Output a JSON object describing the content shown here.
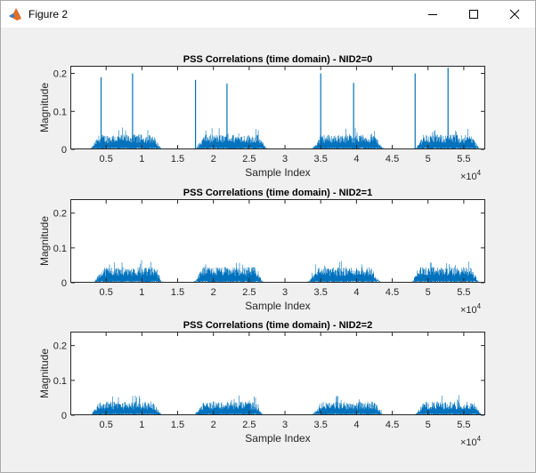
{
  "window": {
    "title": "Figure 2",
    "icons": [
      "matlab-logo-icon",
      "minimize-icon",
      "maximize-icon",
      "close-icon"
    ]
  },
  "chart_data": [
    {
      "type": "line",
      "title": "PSS Correlations (time domain) - NID2=0",
      "xlabel": "Sample Index",
      "ylabel": "Magnitude",
      "xlim": [
        0,
        58000
      ],
      "ylim": [
        0,
        0.22
      ],
      "x_ticks": [
        5000,
        10000,
        15000,
        20000,
        25000,
        30000,
        35000,
        40000,
        45000,
        50000,
        55000
      ],
      "x_tick_labels": [
        "0.5",
        "1",
        "1.5",
        "2",
        "2.5",
        "3",
        "3.5",
        "4",
        "4.5",
        "5",
        "5.5"
      ],
      "x_exponent_label": "10",
      "x_exponent": "4",
      "y_ticks": [
        0,
        0.1,
        0.2
      ],
      "y_tick_labels": [
        "0",
        "0.1",
        "0.2"
      ],
      "grid": false,
      "color": "#0072bd",
      "bursts": [
        {
          "start": 2800,
          "end": 12800,
          "level": 0.03
        },
        {
          "start": 17500,
          "end": 27500,
          "level": 0.03
        },
        {
          "start": 33800,
          "end": 43800,
          "level": 0.03
        },
        {
          "start": 48200,
          "end": 57200,
          "level": 0.03
        }
      ],
      "peaks": [
        {
          "x": 4300,
          "y": 0.19
        },
        {
          "x": 8700,
          "y": 0.2
        },
        {
          "x": 17500,
          "y": 0.183
        },
        {
          "x": 21900,
          "y": 0.173
        },
        {
          "x": 35000,
          "y": 0.2
        },
        {
          "x": 39600,
          "y": 0.175
        },
        {
          "x": 48200,
          "y": 0.2
        },
        {
          "x": 52800,
          "y": 0.215
        }
      ]
    },
    {
      "type": "line",
      "title": "PSS Correlations (time domain) - NID2=1",
      "xlabel": "Sample Index",
      "ylabel": "Magnitude",
      "xlim": [
        0,
        58000
      ],
      "ylim": [
        0,
        0.24
      ],
      "x_ticks": [
        5000,
        10000,
        15000,
        20000,
        25000,
        30000,
        35000,
        40000,
        45000,
        50000,
        55000
      ],
      "x_tick_labels": [
        "0.5",
        "1",
        "1.5",
        "2",
        "2.5",
        "3",
        "3.5",
        "4",
        "4.5",
        "5",
        "5.5"
      ],
      "x_exponent_label": "10",
      "x_exponent": "4",
      "y_ticks": [
        0,
        0.1,
        0.2
      ],
      "y_tick_labels": [
        "0",
        "0.1",
        "0.2"
      ],
      "grid": false,
      "color": "#0072bd",
      "bursts": [
        {
          "start": 3300,
          "end": 13000,
          "level": 0.035
        },
        {
          "start": 17300,
          "end": 27000,
          "level": 0.035
        },
        {
          "start": 33200,
          "end": 43300,
          "level": 0.035
        },
        {
          "start": 47700,
          "end": 57200,
          "level": 0.035
        }
      ],
      "peaks": []
    },
    {
      "type": "line",
      "title": "PSS Correlations (time domain) - NID2=2",
      "xlabel": "Sample Index",
      "ylabel": "Magnitude",
      "xlim": [
        0,
        58000
      ],
      "ylim": [
        0,
        0.24
      ],
      "x_ticks": [
        5000,
        10000,
        15000,
        20000,
        25000,
        30000,
        35000,
        40000,
        45000,
        50000,
        55000
      ],
      "x_tick_labels": [
        "0.5",
        "1",
        "1.5",
        "2",
        "2.5",
        "3",
        "3.5",
        "4",
        "4.5",
        "5",
        "5.5"
      ],
      "x_exponent_label": "10",
      "x_exponent": "4",
      "y_ticks": [
        0,
        0.1,
        0.2
      ],
      "y_tick_labels": [
        "0",
        "0.1",
        "0.2"
      ],
      "grid": false,
      "color": "#0072bd",
      "bursts": [
        {
          "start": 2800,
          "end": 12800,
          "level": 0.03
        },
        {
          "start": 17300,
          "end": 27000,
          "level": 0.03
        },
        {
          "start": 33800,
          "end": 43800,
          "level": 0.03
        },
        {
          "start": 48200,
          "end": 57500,
          "level": 0.03
        }
      ],
      "peaks": []
    }
  ]
}
